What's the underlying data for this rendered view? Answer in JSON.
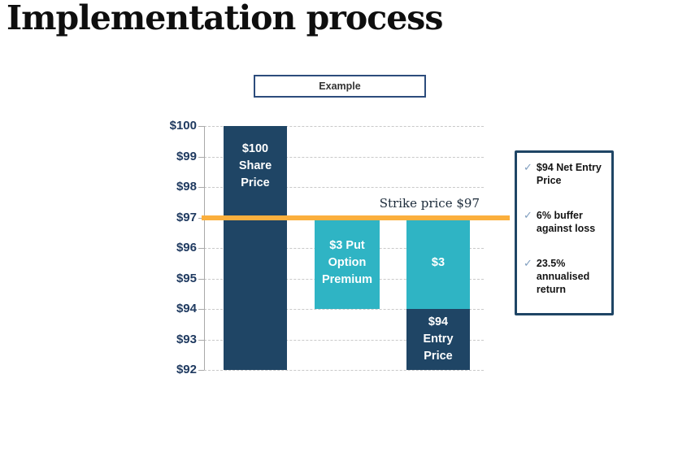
{
  "page": {
    "title": "Implementation process"
  },
  "example_box": {
    "label": "Example"
  },
  "chart_data": {
    "type": "bar",
    "title": "",
    "xlabel": "",
    "ylabel": "",
    "ylim": [
      92,
      100
    ],
    "ytick_prefix": "$",
    "yticks": [
      100,
      99,
      98,
      97,
      96,
      95,
      94,
      93,
      92
    ],
    "grid": "horizontal-dashed",
    "categories": [
      "Share Price",
      "Put Option Premium",
      "Entry Price"
    ],
    "bars": [
      {
        "name": "share-price-bar",
        "col": 0,
        "from": 92,
        "to": 100,
        "value": 100,
        "color": "#1f4565",
        "label": "$100 Share Price",
        "label_lines": [
          "$100",
          "Share",
          "Price"
        ],
        "label_pos": "top"
      },
      {
        "name": "put-option-premium-bar",
        "col": 1,
        "from": 94,
        "to": 97,
        "value": 3,
        "color": "#2fb4c4",
        "label": "$3 Put Option Premium",
        "label_lines": [
          "$3 Put",
          "Option",
          "Premium"
        ],
        "label_pos": "center"
      },
      {
        "name": "entry-premium-segment",
        "col": 2,
        "from": 94,
        "to": 97,
        "value": 3,
        "color": "#2fb4c4",
        "label": "$3",
        "label_lines": [
          "$3"
        ],
        "label_pos": "center"
      },
      {
        "name": "entry-price-segment",
        "col": 2,
        "from": 92,
        "to": 94,
        "value": 94,
        "color": "#1f4565",
        "label": "$94 Entry Price",
        "label_lines": [
          "$94",
          "Entry",
          "Price"
        ],
        "label_pos": "center"
      }
    ],
    "strike_line": {
      "value": 97,
      "label": "Strike price $97",
      "color": "#fbaf3d"
    }
  },
  "callout_panel": {
    "check_glyph": "✓",
    "border_color": "#1f4565",
    "check_color": "#7e9dbe",
    "items": [
      {
        "icon": "check-icon",
        "text": "$94 Net Entry Price"
      },
      {
        "icon": "check-icon",
        "text": "6% buffer against loss"
      },
      {
        "icon": "check-icon",
        "text": "23.5% annualised return"
      }
    ]
  },
  "colors": {
    "navy": "#1f4565",
    "teal": "#2fb4c4",
    "orange": "#fbaf3d",
    "axis_text": "#1f3a60",
    "gridline": "#c9c9c9"
  }
}
